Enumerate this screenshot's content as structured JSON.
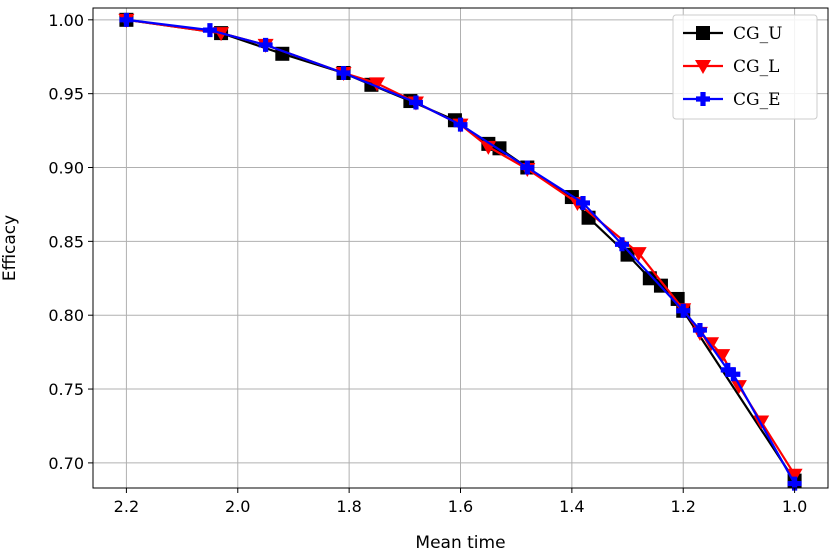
{
  "chart_data": {
    "type": "line",
    "title": "",
    "xlabel": "Mean time",
    "ylabel": "Efficacy",
    "xlim": [
      2.26,
      0.94
    ],
    "ylim": [
      0.683,
      1.008
    ],
    "x_inverted": true,
    "grid": true,
    "legend_position": "top-right",
    "xticks": [
      2.2,
      2.0,
      1.8,
      1.6,
      1.4,
      1.2,
      1.0
    ],
    "xtick_labels": [
      "2.2",
      "2.0",
      "1.8",
      "1.6",
      "1.4",
      "1.2",
      "1.0"
    ],
    "yticks": [
      0.7,
      0.75,
      0.8,
      0.85,
      0.9,
      0.95,
      1.0
    ],
    "ytick_labels": [
      "0.70",
      "0.75",
      "0.80",
      "0.85",
      "0.90",
      "0.95",
      "1.00"
    ],
    "series": [
      {
        "name": "CG_U",
        "color": "#000000",
        "marker": "square",
        "x": [
          2.2,
          2.03,
          1.92,
          1.81,
          1.76,
          1.69,
          1.61,
          1.55,
          1.53,
          1.48,
          1.4,
          1.37,
          1.3,
          1.26,
          1.24,
          1.21,
          1.2,
          1.0
        ],
        "y": [
          1.0,
          0.991,
          0.977,
          0.964,
          0.956,
          0.945,
          0.932,
          0.916,
          0.913,
          0.9,
          0.88,
          0.866,
          0.841,
          0.825,
          0.82,
          0.811,
          0.803,
          0.688
        ]
      },
      {
        "name": "CG_L",
        "color": "#ff0000",
        "marker": "triangle-down",
        "x": [
          2.2,
          2.03,
          1.95,
          1.81,
          1.75,
          1.68,
          1.6,
          1.55,
          1.48,
          1.39,
          1.28,
          1.2,
          1.17,
          1.15,
          1.13,
          1.1,
          1.06,
          1.0
        ],
        "y": [
          1.0,
          0.991,
          0.983,
          0.964,
          0.957,
          0.944,
          0.929,
          0.914,
          0.899,
          0.876,
          0.842,
          0.804,
          0.788,
          0.781,
          0.773,
          0.752,
          0.728,
          0.692
        ]
      },
      {
        "name": "CG_E",
        "color": "#0000ff",
        "marker": "plus",
        "x": [
          2.2,
          2.05,
          1.95,
          1.81,
          1.68,
          1.6,
          1.48,
          1.38,
          1.31,
          1.2,
          1.17,
          1.12,
          1.11,
          1.0
        ],
        "y": [
          1.0,
          0.993,
          0.983,
          0.964,
          0.944,
          0.929,
          0.9,
          0.876,
          0.848,
          0.803,
          0.79,
          0.763,
          0.76,
          0.686
        ]
      }
    ]
  }
}
